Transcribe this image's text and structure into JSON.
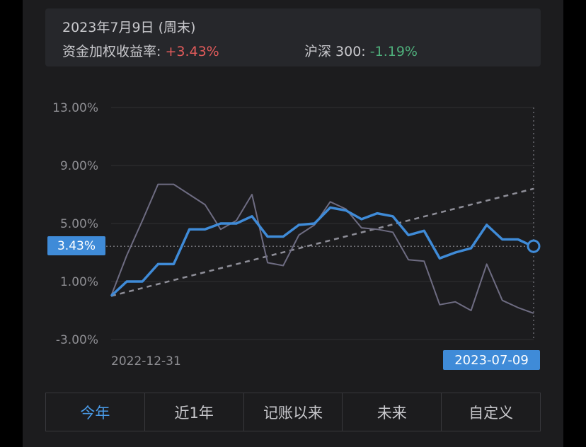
{
  "info": {
    "date": "2023年7月9日 (周末)",
    "return_label": "资金加权收益率:",
    "return_value": "+3.43%",
    "index_label": "沪深 300:",
    "index_value": "-1.19%"
  },
  "colors": {
    "portfolio": "#3f8bd8",
    "benchmark": "#6e6c82",
    "trend": "#8e8e98",
    "positive": "#e25b5b",
    "negative": "#4fb07c",
    "active_tab": "#4a9be8"
  },
  "tabs": [
    {
      "label": "今年",
      "active": true
    },
    {
      "label": "近1年",
      "active": false
    },
    {
      "label": "记账以来",
      "active": false
    },
    {
      "label": "未来",
      "active": false
    },
    {
      "label": "自定义",
      "active": false
    }
  ],
  "chart_data": {
    "type": "line",
    "title": "",
    "xlabel": "",
    "ylabel": "",
    "x_range": [
      "2022-12-31",
      "2023-07-09"
    ],
    "x_tick_labels": [
      "2022-12-31"
    ],
    "ylim": [
      -3,
      13
    ],
    "y_ticks": [
      13,
      9,
      5,
      1,
      -3
    ],
    "y_tick_labels": [
      "13.00%",
      "9.00%",
      "5.00%",
      "1.00%",
      "-3.00%"
    ],
    "grid": true,
    "current_value_label": "3.43%",
    "current_date_label": "2023-07-09",
    "series": [
      {
        "key": "portfolio",
        "style": "solid-thick",
        "values": [
          0.0,
          1.0,
          1.0,
          2.2,
          2.2,
          4.6,
          4.6,
          5.0,
          5.0,
          5.5,
          4.1,
          4.1,
          4.9,
          5.0,
          6.1,
          5.9,
          5.3,
          5.7,
          5.5,
          4.2,
          4.5,
          2.6,
          3.0,
          3.3,
          4.9,
          3.9,
          3.9,
          3.4
        ],
        "last_value": 3.43
      },
      {
        "key": "benchmark",
        "style": "solid-thin",
        "values": [
          0.0,
          2.8,
          5.2,
          7.7,
          7.7,
          7.0,
          6.3,
          4.6,
          5.2,
          7.0,
          2.3,
          2.1,
          4.2,
          4.9,
          6.5,
          6.0,
          4.7,
          4.6,
          4.4,
          2.5,
          2.4,
          -0.6,
          -0.4,
          -1.0,
          2.2,
          -0.3,
          -0.8,
          -1.19
        ],
        "last_value": -1.19
      },
      {
        "key": "trend",
        "style": "dashed",
        "values": [
          0.0,
          7.4
        ]
      }
    ]
  }
}
